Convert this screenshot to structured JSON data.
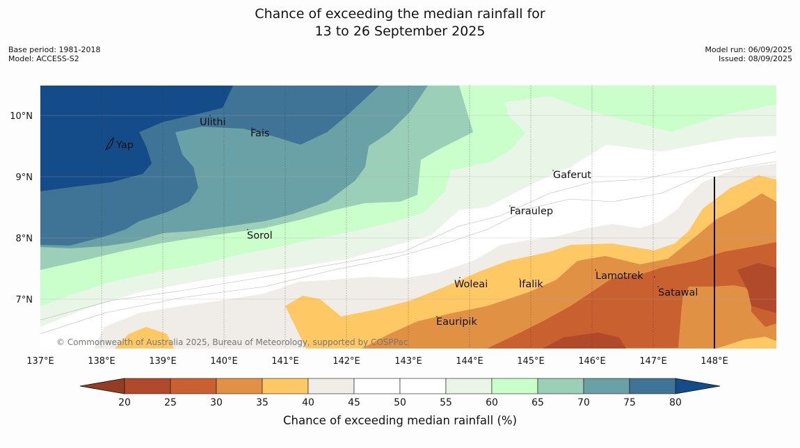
{
  "title_line1": "Chance of exceeding the median rainfall for",
  "title_line2": "13 to 26 September 2025",
  "base_period": "Base period: 1981-2018",
  "model": "Model: ACCESS-S2",
  "model_run": "Model run: 06/09/2025",
  "issued": "Issued: 08/09/2025",
  "copyright": "© Commonwealth of Australia 2025, Bureau of Meteorology, supported by COSPPac",
  "axes": {
    "x_ticks": [
      "137°E",
      "138°E",
      "139°E",
      "140°E",
      "141°E",
      "142°E",
      "143°E",
      "144°E",
      "145°E",
      "146°E",
      "147°E",
      "148°E"
    ],
    "y_ticks": [
      "10°N",
      "9°N",
      "8°N",
      "7°N"
    ]
  },
  "places": {
    "yap": "Yap",
    "ulithi": "Ulithi",
    "fais": "Fais",
    "gaferut": "Gaferut",
    "faraulep": "Faraulep",
    "sorol": "Sorol",
    "woleai": "Woleai",
    "ifalik": "Ifalik",
    "lamotrek": "Lamotrek",
    "satawal": "Satawal",
    "eauripik": "Eauripik"
  },
  "colorbar": {
    "label": "Chance of exceeding median rainfall (%)",
    "ticks": [
      "20",
      "25",
      "30",
      "35",
      "40",
      "45",
      "50",
      "55",
      "60",
      "65",
      "70",
      "75",
      "80"
    ],
    "colors": [
      "#b14a2b",
      "#c9602f",
      "#e09144",
      "#fec864",
      "#f0ece7",
      "#ffffff",
      "#ffffff",
      "#e9f5e7",
      "#caffcb",
      "#9ccfb7",
      "#6aa1a6",
      "#3f7497"
    ],
    "low_color": "#953d22",
    "high_color": "#134c88"
  }
}
